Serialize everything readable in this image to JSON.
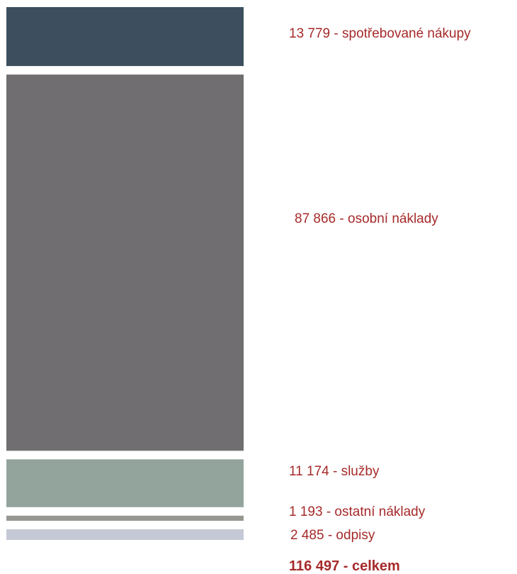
{
  "chart_data": {
    "type": "bar",
    "orientation": "stacked-vertical-block",
    "unit": "",
    "series": [
      {
        "name": "spotřebované nákupy",
        "value": 13779,
        "label": "13 779 - spotřebované nákupy",
        "color": "#3D4F5E"
      },
      {
        "name": "osobní náklady",
        "value": 87866,
        "label": "87 866 - osobní náklady",
        "color": "#706E70"
      },
      {
        "name": "služby",
        "value": 11174,
        "label": "11 174 - služby",
        "color": "#93A49C"
      },
      {
        "name": "ostatní náklady",
        "value": 1193,
        "label": "1 193 - ostatní náklady",
        "color": "#979791"
      },
      {
        "name": "odpisy",
        "value": 2485,
        "label": "2 485 - odpisy",
        "color": "#C5C9D6"
      }
    ],
    "total": {
      "value": 116497,
      "label": "116 497 - celkem"
    }
  },
  "colors": {
    "label_text": "#A62A2A",
    "background": "#FFFFFF"
  }
}
